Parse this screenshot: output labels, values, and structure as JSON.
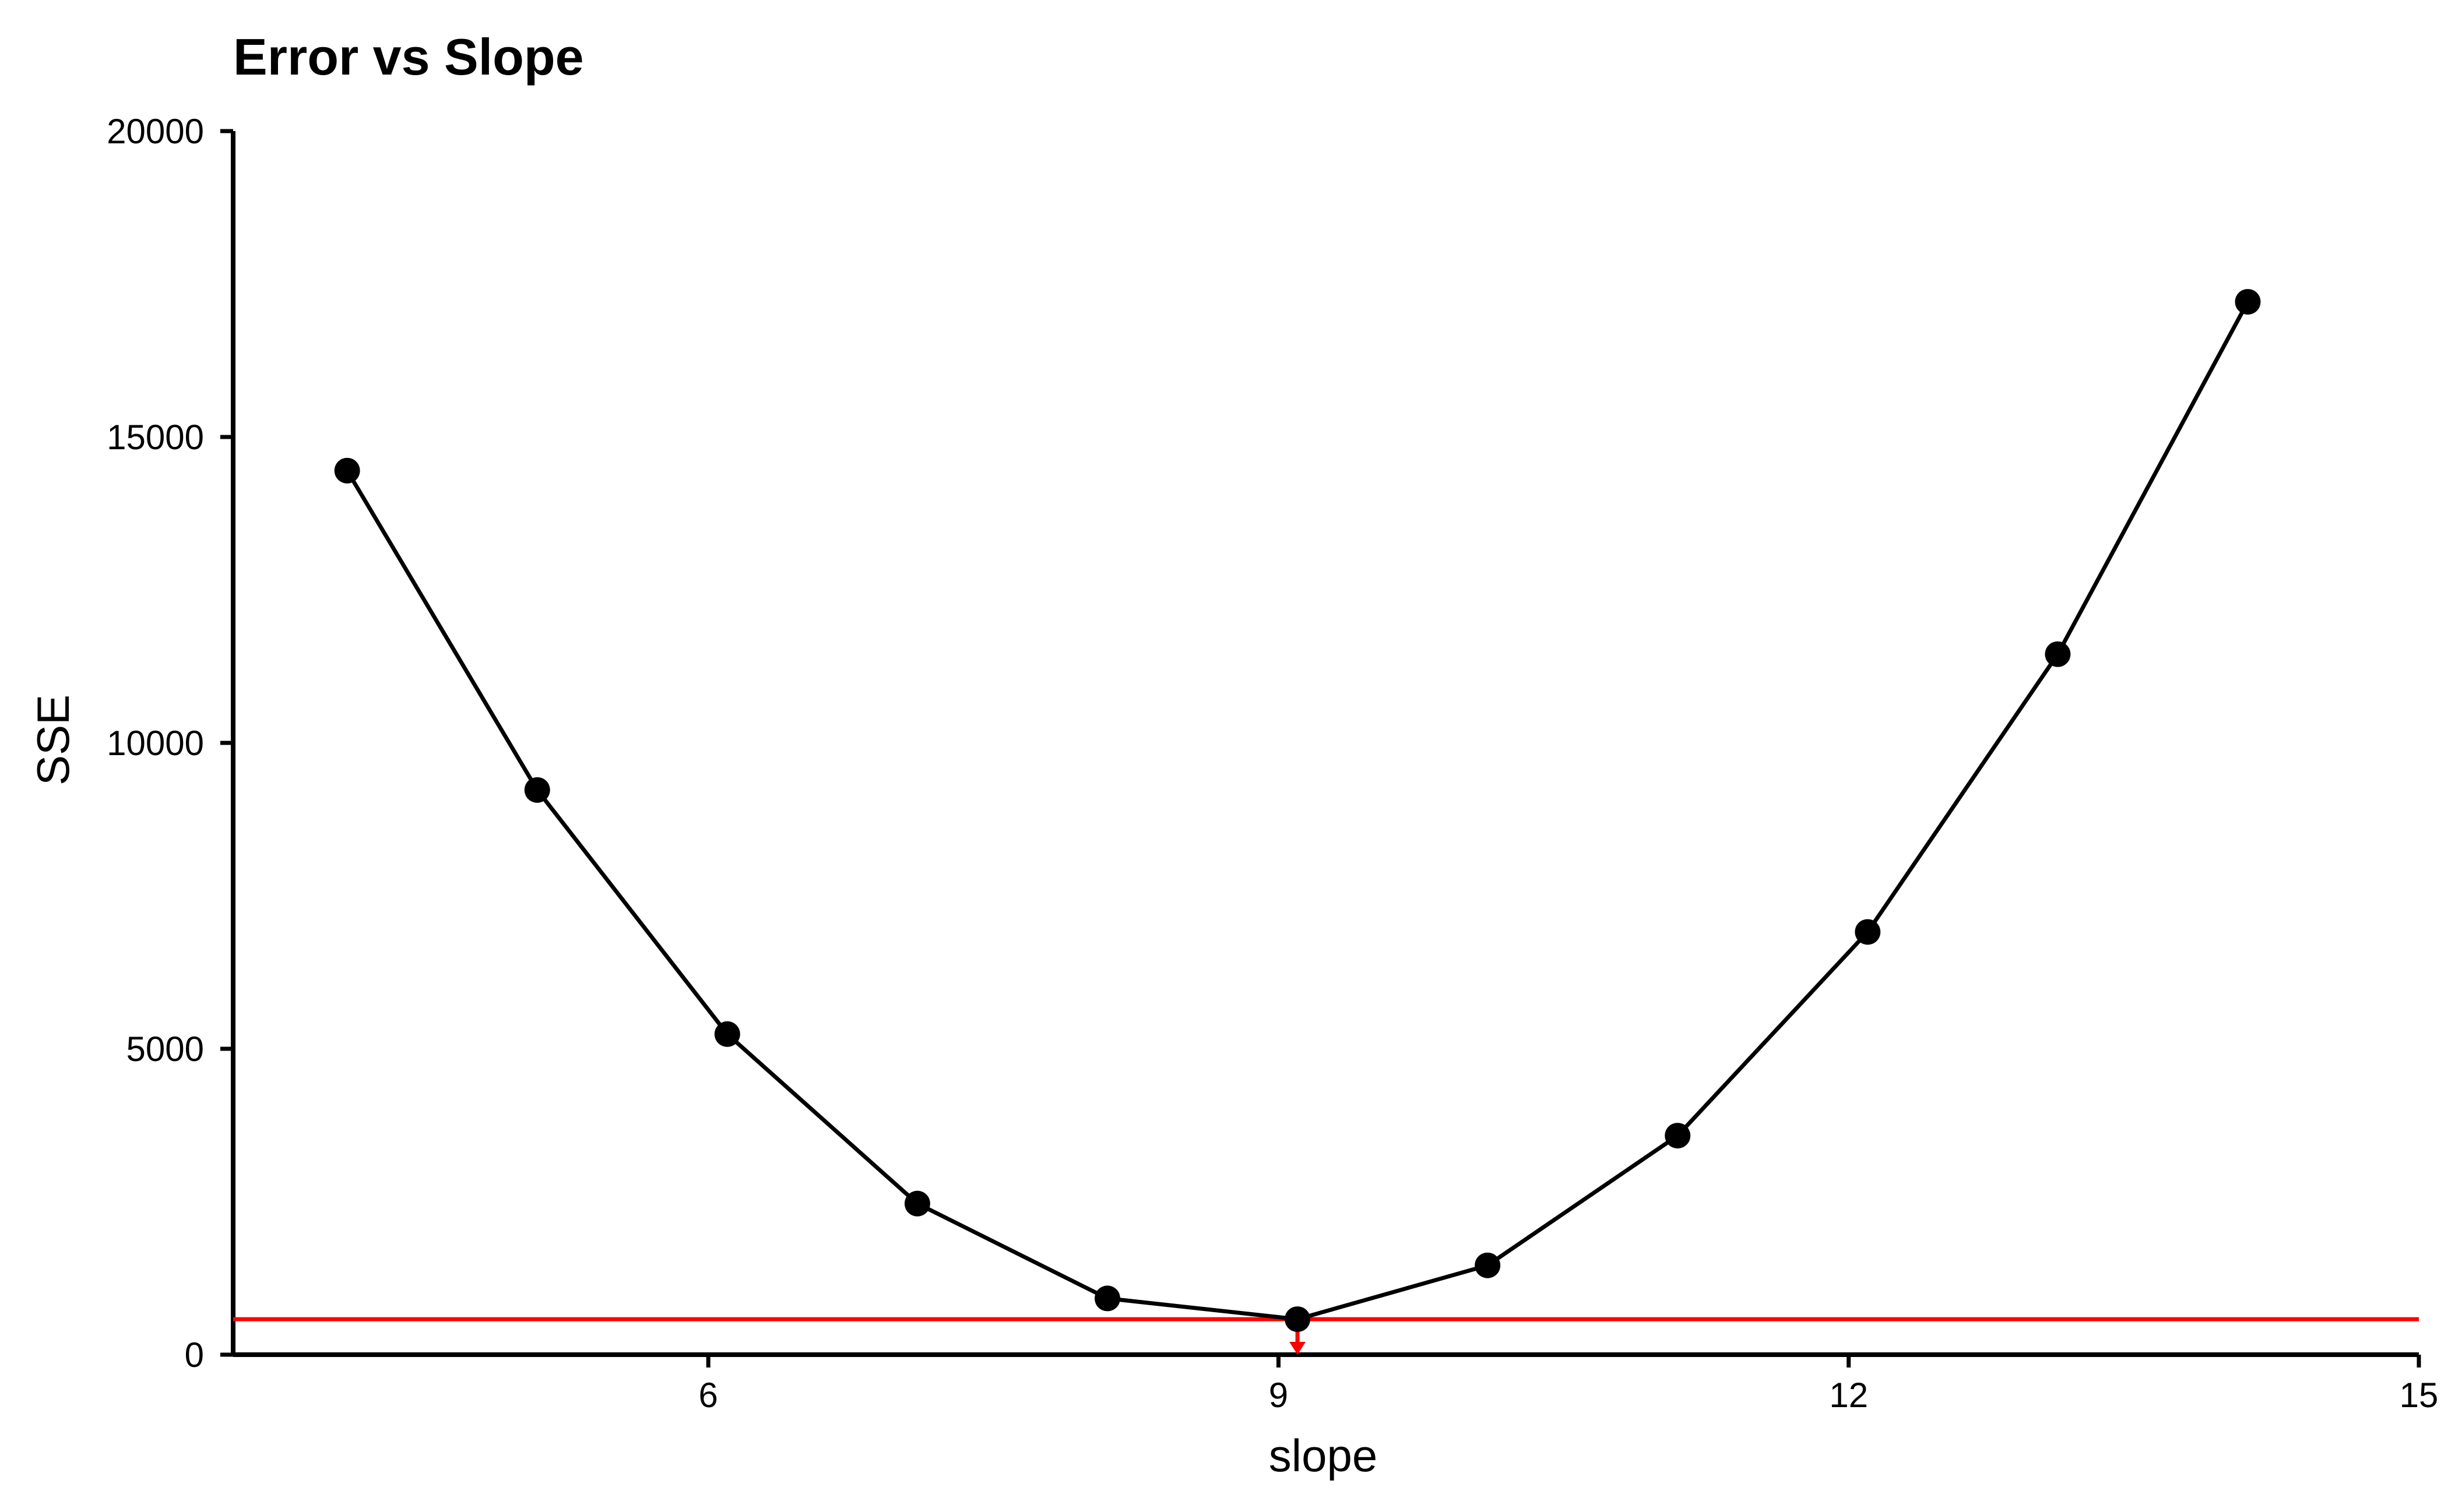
{
  "chart_data": {
    "type": "line",
    "title": "Error vs Slope",
    "xlabel": "slope",
    "ylabel": "SSE",
    "xlim": [
      3.5,
      15
    ],
    "ylim": [
      0,
      20000
    ],
    "x_ticks": [
      6,
      9,
      12,
      15
    ],
    "y_ticks": [
      0,
      5000,
      10000,
      15000,
      20000
    ],
    "grid": false,
    "legend": "none",
    "series": [
      {
        "x": [
          4.1,
          5.1,
          6.1,
          7.1,
          8.1,
          9.1,
          10.1,
          11.1,
          12.1,
          13.1,
          14.1
        ],
        "y": [
          14450,
          9230,
          5240,
          2470,
          920,
          580,
          1460,
          3580,
          6910,
          11450,
          17210
        ],
        "color": "#000000"
      }
    ],
    "reference_line": {
      "y": 580,
      "color": "#ff0000"
    },
    "minimum_marker": {
      "x": 9.1,
      "y": 580,
      "color": "#ff0000"
    }
  }
}
